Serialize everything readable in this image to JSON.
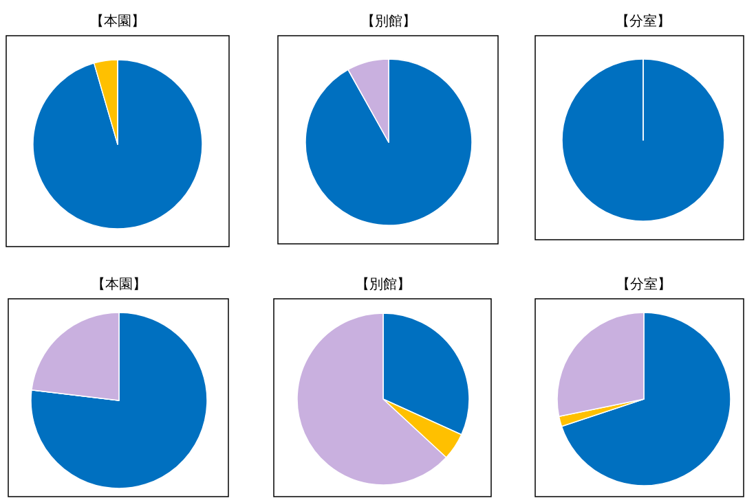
{
  "chart_data": [
    {
      "type": "pie",
      "title": "【本園】",
      "categories": [
        null,
        null,
        null
      ],
      "values": [
        95.5,
        4.5,
        0
      ],
      "colors": [
        "#0070c0",
        "#ffc000",
        "#c9b0df"
      ]
    },
    {
      "type": "pie",
      "title": "【別館】",
      "categories": [
        null,
        null,
        null
      ],
      "values": [
        91.9,
        0,
        8.1
      ],
      "colors": [
        "#0070c0",
        "#ffc000",
        "#c9b0df"
      ]
    },
    {
      "type": "pie",
      "title": "【分室】",
      "categories": [
        null,
        null,
        null
      ],
      "values": [
        100,
        0,
        0
      ],
      "colors": [
        "#0070c0",
        "#ffc000",
        "#c9b0df"
      ]
    },
    {
      "type": "pie",
      "title": "【本園】",
      "categories": [
        null,
        null,
        null
      ],
      "values": [
        76.9,
        0,
        23.1
      ],
      "colors": [
        "#0070c0",
        "#ffc000",
        "#c9b0df"
      ]
    },
    {
      "type": "pie",
      "title": "【別館】",
      "categories": [
        null,
        null,
        null
      ],
      "values": [
        31.8,
        5.1,
        63.1
      ],
      "colors": [
        "#0070c0",
        "#ffc000",
        "#c9b0df"
      ]
    },
    {
      "type": "pie",
      "title": "【分室】",
      "categories": [
        null,
        null,
        null
      ],
      "values": [
        69.9,
        1.9,
        28.2
      ],
      "colors": [
        "#0070c0",
        "#ffc000",
        "#c9b0df"
      ]
    }
  ]
}
